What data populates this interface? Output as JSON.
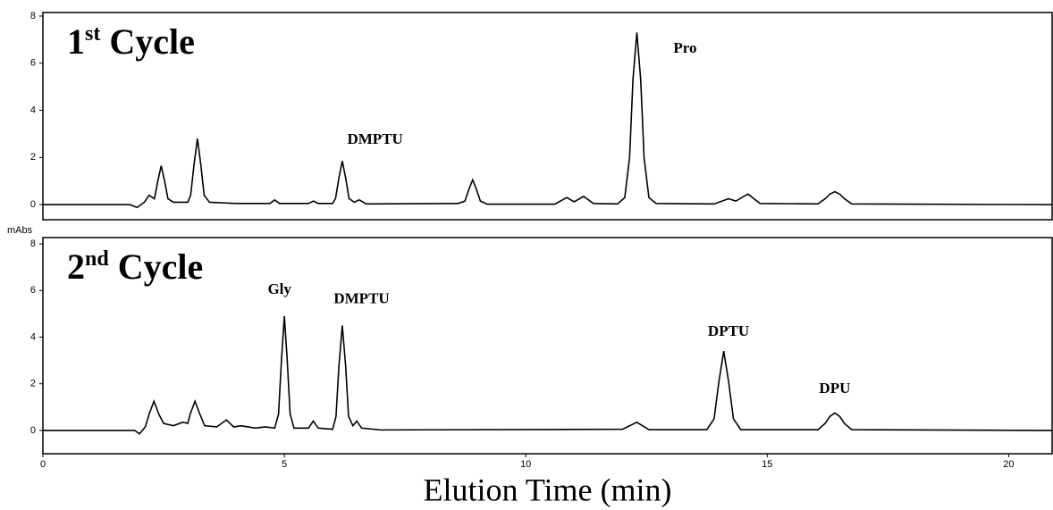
{
  "chart_data": [
    {
      "type": "line",
      "title_parts": [
        "1",
        "st",
        "Cycle"
      ],
      "xlim": [
        0,
        20.9
      ],
      "ylim": [
        -0.64,
        8.15
      ],
      "yticks": [
        0,
        2,
        4,
        6,
        8
      ],
      "x": [
        0,
        1.8,
        1.95,
        2.1,
        2.2,
        2.31,
        2.38,
        2.45,
        2.52,
        2.59,
        2.7,
        3.0,
        3.06,
        3.13,
        3.2,
        3.27,
        3.34,
        3.45,
        4.0,
        4.7,
        4.8,
        4.9,
        5.5,
        5.6,
        5.7,
        6.0,
        6.06,
        6.13,
        6.2,
        6.27,
        6.34,
        6.45,
        6.55,
        6.7,
        8.6,
        8.74,
        8.82,
        8.9,
        8.98,
        9.06,
        9.2,
        10.6,
        10.85,
        11.0,
        11.2,
        11.4,
        11.9,
        12.05,
        12.15,
        12.22,
        12.3,
        12.38,
        12.45,
        12.55,
        12.7,
        13.9,
        14.2,
        14.35,
        14.6,
        14.85,
        16.05,
        16.2,
        16.3,
        16.4,
        16.5,
        16.6,
        16.75,
        20.9
      ],
      "series": [
        {
          "color": "#000000",
          "values": [
            0,
            0,
            -0.12,
            0.1,
            0.4,
            0.25,
            1.0,
            1.65,
            1.0,
            0.25,
            0.1,
            0.1,
            0.4,
            1.7,
            2.8,
            1.7,
            0.4,
            0.1,
            0.05,
            0.05,
            0.2,
            0.05,
            0.05,
            0.15,
            0.05,
            0.05,
            0.26,
            1.13,
            1.85,
            1.13,
            0.26,
            0.1,
            0.2,
            0.03,
            0.05,
            0.15,
            0.64,
            1.05,
            0.64,
            0.15,
            0.02,
            0.02,
            0.3,
            0.12,
            0.35,
            0.05,
            0.03,
            0.3,
            2.0,
            5.3,
            7.3,
            5.3,
            2.0,
            0.3,
            0.05,
            0.03,
            0.25,
            0.15,
            0.45,
            0.05,
            0.03,
            0.25,
            0.45,
            0.55,
            0.45,
            0.25,
            0.03,
            0
          ]
        }
      ],
      "annotations": [
        {
          "text": "DMPTU",
          "x": 6.88,
          "y": 2.73
        },
        {
          "text": "Pro",
          "x": 13.3,
          "y": 6.6
        }
      ]
    },
    {
      "type": "line",
      "title_parts": [
        "2",
        "nd",
        "Cycle"
      ],
      "y_label": "mAbs",
      "x_label": "Elution Time (min)",
      "xlim": [
        0,
        20.9
      ],
      "xticks": [
        0,
        5,
        10,
        15,
        20
      ],
      "ylim": [
        -1,
        8.27
      ],
      "yticks": [
        0,
        2,
        4,
        6,
        8
      ],
      "x": [
        0,
        1.9,
        2.0,
        2.12,
        2.2,
        2.3,
        2.4,
        2.5,
        2.7,
        2.9,
        3.0,
        3.05,
        3.15,
        3.25,
        3.35,
        3.6,
        3.8,
        3.95,
        4.1,
        4.4,
        4.6,
        4.8,
        4.88,
        4.94,
        5.0,
        5.06,
        5.12,
        5.2,
        5.5,
        5.6,
        5.7,
        6.0,
        6.07,
        6.13,
        6.2,
        6.27,
        6.33,
        6.42,
        6.5,
        6.6,
        7.0,
        12.0,
        12.3,
        12.55,
        13.75,
        13.9,
        14.0,
        14.1,
        14.2,
        14.3,
        14.45,
        16.05,
        16.2,
        16.3,
        16.4,
        16.5,
        16.6,
        16.75,
        20.9
      ],
      "series": [
        {
          "color": "#000000",
          "values": [
            0,
            0,
            -0.15,
            0.15,
            0.7,
            1.25,
            0.7,
            0.3,
            0.2,
            0.35,
            0.3,
            0.7,
            1.25,
            0.7,
            0.2,
            0.15,
            0.45,
            0.15,
            0.2,
            0.1,
            0.15,
            0.1,
            0.7,
            3.0,
            4.9,
            3.0,
            0.7,
            0.1,
            0.1,
            0.4,
            0.1,
            0.05,
            0.6,
            2.75,
            4.5,
            2.75,
            0.6,
            0.2,
            0.4,
            0.1,
            0.02,
            0.05,
            0.35,
            0.03,
            0.03,
            0.5,
            2.1,
            3.4,
            2.1,
            0.5,
            0.03,
            0.03,
            0.3,
            0.6,
            0.75,
            0.6,
            0.3,
            0.03,
            0
          ]
        }
      ],
      "annotations": [
        {
          "text": "Gly",
          "x": 4.9,
          "y": 6.0
        },
        {
          "text": "DMPTU",
          "x": 6.6,
          "y": 5.6
        },
        {
          "text": "DPTU",
          "x": 14.2,
          "y": 4.2
        },
        {
          "text": "DPU",
          "x": 16.4,
          "y": 1.75
        }
      ]
    }
  ]
}
